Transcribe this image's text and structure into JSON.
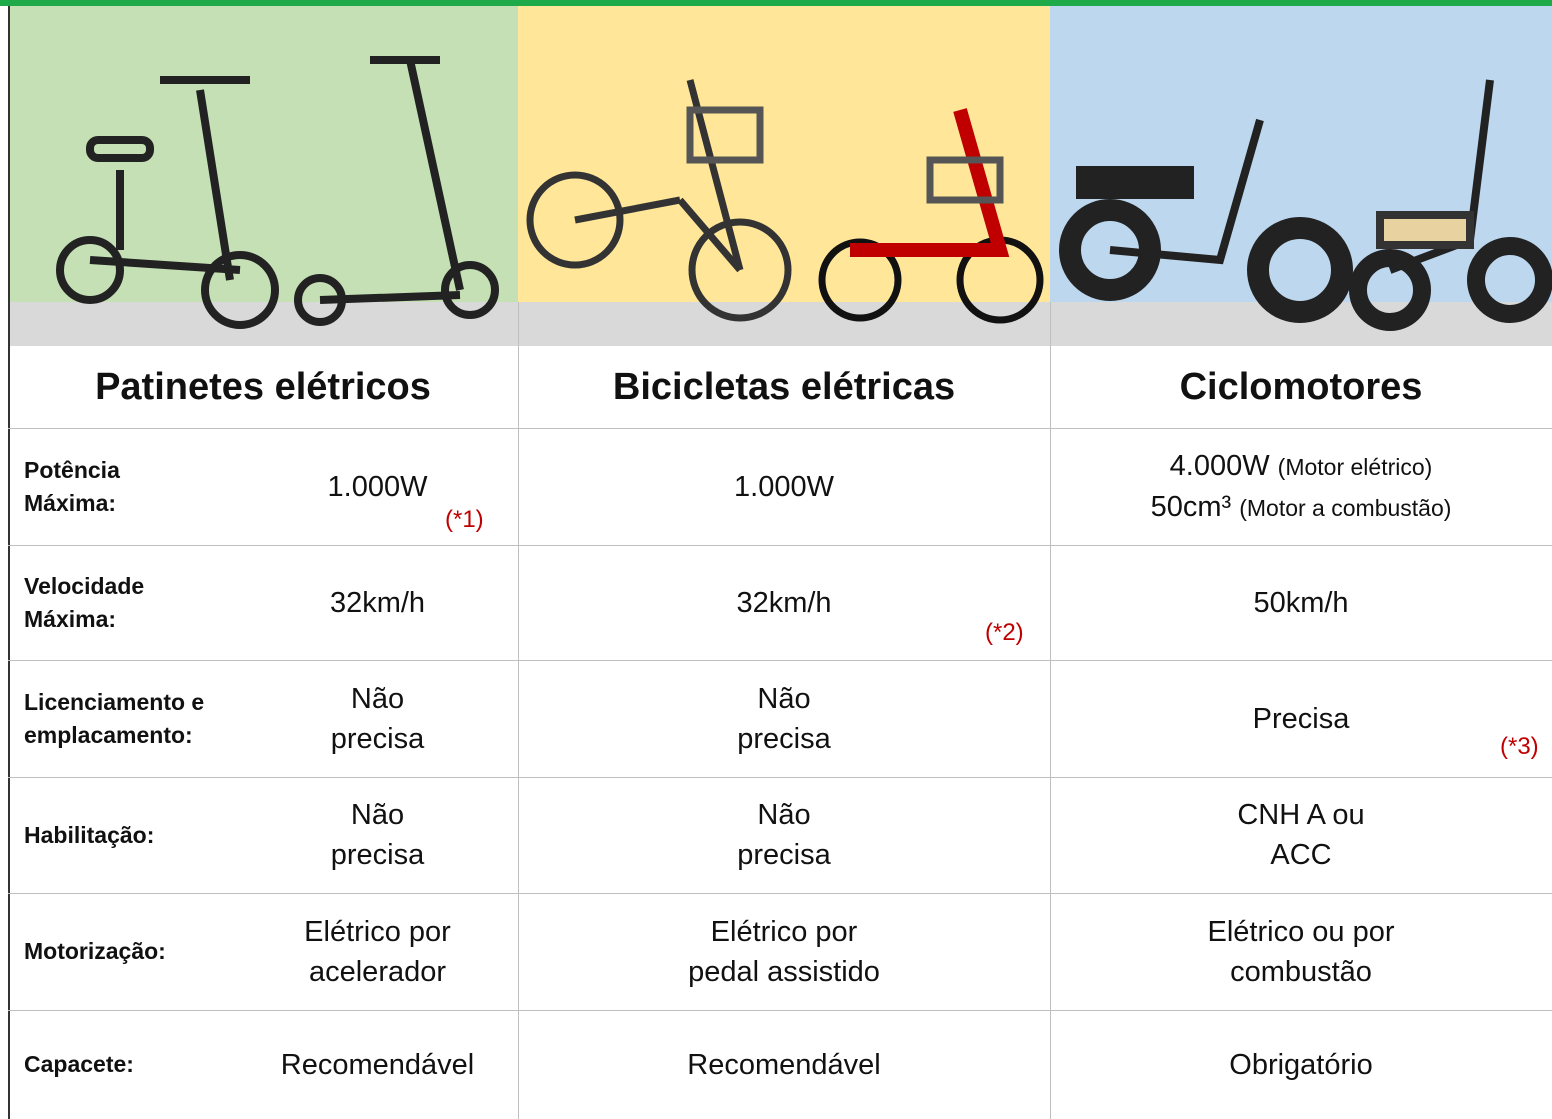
{
  "columns": [
    {
      "title": "Patinetes elétricos"
    },
    {
      "title": "Bicicletas elétricas"
    },
    {
      "title": "Ciclomotores"
    }
  ],
  "rows": [
    {
      "label": [
        "Potência",
        "Máxima:"
      ],
      "cells": [
        {
          "lines": [
            {
              "text": "1.000W"
            }
          ],
          "note": "(*1)"
        },
        {
          "lines": [
            {
              "text": "1.000W"
            }
          ]
        },
        {
          "lines": [
            {
              "text": "4.000W",
              "detail": "(Motor elétrico)"
            },
            {
              "text": "50cm³",
              "detail": "(Motor a combustão)"
            }
          ]
        }
      ]
    },
    {
      "label": [
        "Velocidade",
        "Máxima:"
      ],
      "cells": [
        {
          "lines": [
            {
              "text": "32km/h"
            }
          ]
        },
        {
          "lines": [
            {
              "text": "32km/h"
            }
          ],
          "note": "(*2)"
        },
        {
          "lines": [
            {
              "text": "50km/h"
            }
          ]
        }
      ]
    },
    {
      "label": [
        "Licenciamento e",
        "emplacamento:"
      ],
      "cells": [
        {
          "lines": [
            {
              "text": "Não"
            },
            {
              "text": "precisa"
            }
          ]
        },
        {
          "lines": [
            {
              "text": "Não"
            },
            {
              "text": "precisa"
            }
          ]
        },
        {
          "lines": [
            {
              "text": "Precisa"
            }
          ],
          "note": "(*3)"
        }
      ]
    },
    {
      "label": [
        "Habilitação:"
      ],
      "cells": [
        {
          "lines": [
            {
              "text": "Não"
            },
            {
              "text": "precisa"
            }
          ]
        },
        {
          "lines": [
            {
              "text": "Não"
            },
            {
              "text": "precisa"
            }
          ]
        },
        {
          "lines": [
            {
              "text": "CNH A ou"
            },
            {
              "text": "ACC"
            }
          ]
        }
      ]
    },
    {
      "label": [
        "Motorização:"
      ],
      "cells": [
        {
          "lines": [
            {
              "text": "Elétrico por"
            },
            {
              "text": "acelerador"
            }
          ]
        },
        {
          "lines": [
            {
              "text": "Elétrico por"
            },
            {
              "text": "pedal assistido"
            }
          ]
        },
        {
          "lines": [
            {
              "text": "Elétrico ou por"
            },
            {
              "text": "combustão"
            }
          ]
        }
      ]
    },
    {
      "label": [
        "Capacete:"
      ],
      "cells": [
        {
          "lines": [
            {
              "text": "Recomendável"
            }
          ]
        },
        {
          "lines": [
            {
              "text": "Recomendável"
            }
          ]
        },
        {
          "lines": [
            {
              "text": "Obrigatório"
            }
          ]
        }
      ]
    }
  ]
}
